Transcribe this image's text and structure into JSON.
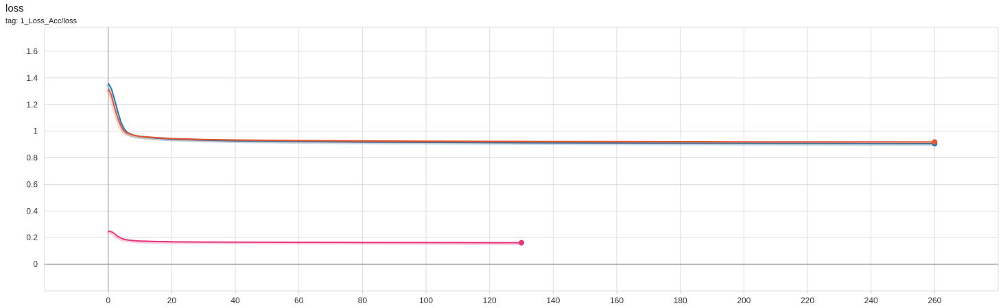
{
  "card": {
    "title": "loss",
    "tag": "tag: 1_Loss_Acc/loss"
  },
  "chart_data": {
    "type": "line",
    "title": "loss",
    "xlabel": "",
    "ylabel": "",
    "xlim": [
      -20,
      280
    ],
    "ylim": [
      -0.2,
      1.78
    ],
    "x_ticks": [
      0,
      20,
      40,
      60,
      80,
      100,
      120,
      140,
      160,
      180,
      200,
      220,
      240,
      260
    ],
    "x_tick_labels": [
      "0",
      "20",
      "40",
      "60",
      "80",
      "100",
      "120",
      "140",
      "160",
      "180",
      "200",
      "220",
      "240",
      "260"
    ],
    "y_ticks": [
      0,
      0.2,
      0.4,
      0.6,
      0.8,
      1.0,
      1.2,
      1.4,
      1.6
    ],
    "y_tick_labels": [
      "0",
      "0.2",
      "0.4",
      "0.6",
      "0.8",
      "1",
      "1.2",
      "1.4",
      "1.6"
    ],
    "grid": true,
    "legend": "none",
    "series": [
      {
        "color": "#1f77b4",
        "x": [
          0,
          1,
          2,
          3,
          4,
          5,
          6,
          8,
          10,
          15,
          20,
          30,
          40,
          60,
          80,
          100,
          130,
          160,
          200,
          230,
          260
        ],
        "y": [
          1.36,
          1.32,
          1.24,
          1.15,
          1.07,
          1.02,
          0.99,
          0.97,
          0.96,
          0.948,
          0.94,
          0.933,
          0.927,
          0.922,
          0.918,
          0.916,
          0.913,
          0.911,
          0.909,
          0.908,
          0.906
        ]
      },
      {
        "color": "#e4572e",
        "x": [
          0,
          1,
          2,
          3,
          4,
          5,
          6,
          8,
          10,
          15,
          20,
          30,
          40,
          60,
          80,
          100,
          130,
          160,
          200,
          230,
          260
        ],
        "y": [
          1.32,
          1.27,
          1.18,
          1.1,
          1.04,
          1.0,
          0.985,
          0.97,
          0.962,
          0.952,
          0.945,
          0.938,
          0.934,
          0.93,
          0.927,
          0.925,
          0.923,
          0.922,
          0.92,
          0.92,
          0.919
        ]
      },
      {
        "color": "#e7327c",
        "x": [
          0,
          1,
          2,
          3,
          4,
          5,
          6,
          8,
          10,
          15,
          20,
          30,
          40,
          60,
          80,
          100,
          130
        ],
        "y": [
          0.25,
          0.245,
          0.23,
          0.21,
          0.197,
          0.188,
          0.183,
          0.178,
          0.175,
          0.171,
          0.169,
          0.167,
          0.166,
          0.165,
          0.164,
          0.163,
          0.162
        ]
      }
    ]
  }
}
